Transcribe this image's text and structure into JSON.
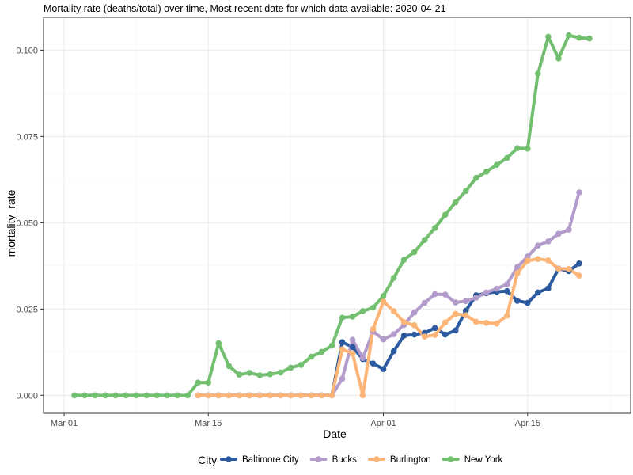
{
  "chart_data": {
    "type": "line",
    "title": "Mortality rate (deaths/total) over time, Most recent date for which data available: 2020-04-21",
    "xlabel": "Date",
    "ylabel": "mortality_rate",
    "x_tick_labels": [
      "Mar 01",
      "Mar 15",
      "Apr 01",
      "Apr 15"
    ],
    "x_tick_dates": [
      "2020-03-01",
      "2020-03-15",
      "2020-04-01",
      "2020-04-15"
    ],
    "x_minor_dates": [
      "2020-03-08",
      "2020-03-23",
      "2020-04-08",
      "2020-04-23"
    ],
    "xlim": [
      "2020-02-28",
      "2020-04-25"
    ],
    "y_tick_labels": [
      "0.000",
      "0.025",
      "0.050",
      "0.075",
      "0.100"
    ],
    "y_ticks": [
      0.0,
      0.025,
      0.05,
      0.075,
      0.1
    ],
    "ylim": [
      -0.0052,
      0.1095
    ],
    "grid": true,
    "legend_position": "bottom",
    "legend_title": "City",
    "series": [
      {
        "name": "Baltimore City",
        "color": "#2c5aa0",
        "points": [
          [
            "2020-03-14",
            0
          ],
          [
            "2020-03-15",
            0
          ],
          [
            "2020-03-16",
            0
          ],
          [
            "2020-03-17",
            0
          ],
          [
            "2020-03-18",
            0
          ],
          [
            "2020-03-19",
            0
          ],
          [
            "2020-03-20",
            0
          ],
          [
            "2020-03-21",
            0
          ],
          [
            "2020-03-22",
            0
          ],
          [
            "2020-03-23",
            0
          ],
          [
            "2020-03-24",
            0
          ],
          [
            "2020-03-25",
            0
          ],
          [
            "2020-03-26",
            0
          ],
          [
            "2020-03-27",
            0
          ],
          [
            "2020-03-28",
            0.0154
          ],
          [
            "2020-03-29",
            0.014
          ],
          [
            "2020-03-30",
            0.0105
          ],
          [
            "2020-03-31",
            0.0092
          ],
          [
            "2020-04-01",
            0.0076
          ],
          [
            "2020-04-02",
            0.0128
          ],
          [
            "2020-04-03",
            0.0173
          ],
          [
            "2020-04-04",
            0.0176
          ],
          [
            "2020-04-05",
            0.0181
          ],
          [
            "2020-04-06",
            0.0195
          ],
          [
            "2020-04-07",
            0.0176
          ],
          [
            "2020-04-08",
            0.0188
          ],
          [
            "2020-04-09",
            0.0245
          ],
          [
            "2020-04-10",
            0.029
          ],
          [
            "2020-04-11",
            0.0296
          ],
          [
            "2020-04-12",
            0.03
          ],
          [
            "2020-04-13",
            0.0302
          ],
          [
            "2020-04-14",
            0.0274
          ],
          [
            "2020-04-15",
            0.0268
          ],
          [
            "2020-04-16",
            0.0298
          ],
          [
            "2020-04-17",
            0.031
          ],
          [
            "2020-04-18",
            0.0367
          ],
          [
            "2020-04-19",
            0.036
          ],
          [
            "2020-04-20",
            0.0382
          ]
        ]
      },
      {
        "name": "Bucks",
        "color": "#b39ccb",
        "points": [
          [
            "2020-03-14",
            0
          ],
          [
            "2020-03-15",
            0
          ],
          [
            "2020-03-16",
            0
          ],
          [
            "2020-03-17",
            0
          ],
          [
            "2020-03-18",
            0
          ],
          [
            "2020-03-19",
            0
          ],
          [
            "2020-03-20",
            0
          ],
          [
            "2020-03-21",
            0
          ],
          [
            "2020-03-22",
            0
          ],
          [
            "2020-03-23",
            0
          ],
          [
            "2020-03-24",
            0
          ],
          [
            "2020-03-25",
            0
          ],
          [
            "2020-03-26",
            0
          ],
          [
            "2020-03-27",
            0
          ],
          [
            "2020-03-28",
            0.0048
          ],
          [
            "2020-03-29",
            0.0161
          ],
          [
            "2020-03-30",
            0.0108
          ],
          [
            "2020-03-31",
            0.0185
          ],
          [
            "2020-04-01",
            0.0162
          ],
          [
            "2020-04-02",
            0.0177
          ],
          [
            "2020-04-03",
            0.0204
          ],
          [
            "2020-04-04",
            0.024
          ],
          [
            "2020-04-05",
            0.0268
          ],
          [
            "2020-04-06",
            0.0293
          ],
          [
            "2020-04-07",
            0.0292
          ],
          [
            "2020-04-08",
            0.0269
          ],
          [
            "2020-04-09",
            0.0273
          ],
          [
            "2020-04-10",
            0.0283
          ],
          [
            "2020-04-11",
            0.0298
          ],
          [
            "2020-04-12",
            0.0309
          ],
          [
            "2020-04-13",
            0.0322
          ],
          [
            "2020-04-14",
            0.0372
          ],
          [
            "2020-04-15",
            0.0402
          ],
          [
            "2020-04-16",
            0.0434
          ],
          [
            "2020-04-17",
            0.0446
          ],
          [
            "2020-04-18",
            0.0468
          ],
          [
            "2020-04-19",
            0.048
          ],
          [
            "2020-04-20",
            0.0588
          ]
        ]
      },
      {
        "name": "Burlington",
        "color": "#fdb577",
        "points": [
          [
            "2020-03-14",
            0
          ],
          [
            "2020-03-15",
            0
          ],
          [
            "2020-03-16",
            0
          ],
          [
            "2020-03-17",
            0
          ],
          [
            "2020-03-18",
            0
          ],
          [
            "2020-03-19",
            0
          ],
          [
            "2020-03-20",
            0
          ],
          [
            "2020-03-21",
            0
          ],
          [
            "2020-03-22",
            0
          ],
          [
            "2020-03-23",
            0
          ],
          [
            "2020-03-24",
            0
          ],
          [
            "2020-03-25",
            0
          ],
          [
            "2020-03-26",
            0
          ],
          [
            "2020-03-27",
            0
          ],
          [
            "2020-03-28",
            0.0133
          ],
          [
            "2020-03-29",
            0.0122
          ],
          [
            "2020-03-30",
            0.0
          ],
          [
            "2020-03-31",
            0.0192
          ],
          [
            "2020-04-01",
            0.0272
          ],
          [
            "2020-04-02",
            0.0244
          ],
          [
            "2020-04-03",
            0.0212
          ],
          [
            "2020-04-04",
            0.0203
          ],
          [
            "2020-04-05",
            0.017
          ],
          [
            "2020-04-06",
            0.0175
          ],
          [
            "2020-04-07",
            0.0211
          ],
          [
            "2020-04-08",
            0.0236
          ],
          [
            "2020-04-09",
            0.0232
          ],
          [
            "2020-04-10",
            0.0213
          ],
          [
            "2020-04-11",
            0.021
          ],
          [
            "2020-04-12",
            0.0208
          ],
          [
            "2020-04-13",
            0.0231
          ],
          [
            "2020-04-14",
            0.0354
          ],
          [
            "2020-04-15",
            0.039
          ],
          [
            "2020-04-16",
            0.0395
          ],
          [
            "2020-04-17",
            0.0391
          ],
          [
            "2020-04-18",
            0.0367
          ],
          [
            "2020-04-19",
            0.0366
          ],
          [
            "2020-04-20",
            0.0347
          ]
        ]
      },
      {
        "name": "New York",
        "color": "#72c06f",
        "points": [
          [
            "2020-03-02",
            0
          ],
          [
            "2020-03-03",
            0
          ],
          [
            "2020-03-04",
            0
          ],
          [
            "2020-03-05",
            0
          ],
          [
            "2020-03-06",
            0
          ],
          [
            "2020-03-07",
            0
          ],
          [
            "2020-03-08",
            0
          ],
          [
            "2020-03-09",
            0
          ],
          [
            "2020-03-10",
            0
          ],
          [
            "2020-03-11",
            0
          ],
          [
            "2020-03-12",
            0
          ],
          [
            "2020-03-13",
            0
          ],
          [
            "2020-03-14",
            0.0037
          ],
          [
            "2020-03-15",
            0.0037
          ],
          [
            "2020-03-16",
            0.0151
          ],
          [
            "2020-03-17",
            0.0085
          ],
          [
            "2020-03-18",
            0.006
          ],
          [
            "2020-03-19",
            0.0065
          ],
          [
            "2020-03-20",
            0.0058
          ],
          [
            "2020-03-21",
            0.0061
          ],
          [
            "2020-03-22",
            0.0066
          ],
          [
            "2020-03-23",
            0.008
          ],
          [
            "2020-03-24",
            0.0088
          ],
          [
            "2020-03-25",
            0.0112
          ],
          [
            "2020-03-26",
            0.0126
          ],
          [
            "2020-03-27",
            0.0144
          ],
          [
            "2020-03-28",
            0.0225
          ],
          [
            "2020-03-29",
            0.0228
          ],
          [
            "2020-03-30",
            0.0244
          ],
          [
            "2020-03-31",
            0.0254
          ],
          [
            "2020-04-01",
            0.0288
          ],
          [
            "2020-04-02",
            0.034
          ],
          [
            "2020-04-03",
            0.0393
          ],
          [
            "2020-04-04",
            0.0415
          ],
          [
            "2020-04-05",
            0.045
          ],
          [
            "2020-04-06",
            0.0485
          ],
          [
            "2020-04-07",
            0.0523
          ],
          [
            "2020-04-08",
            0.0559
          ],
          [
            "2020-04-09",
            0.0592
          ],
          [
            "2020-04-10",
            0.063
          ],
          [
            "2020-04-11",
            0.0648
          ],
          [
            "2020-04-12",
            0.0668
          ],
          [
            "2020-04-13",
            0.0688
          ],
          [
            "2020-04-14",
            0.0716
          ],
          [
            "2020-04-15",
            0.0715
          ],
          [
            "2020-04-16",
            0.0932
          ],
          [
            "2020-04-17",
            0.1039
          ],
          [
            "2020-04-18",
            0.0976
          ],
          [
            "2020-04-19",
            0.1043
          ],
          [
            "2020-04-20",
            0.1036
          ],
          [
            "2020-04-21",
            0.1034
          ]
        ]
      }
    ]
  }
}
